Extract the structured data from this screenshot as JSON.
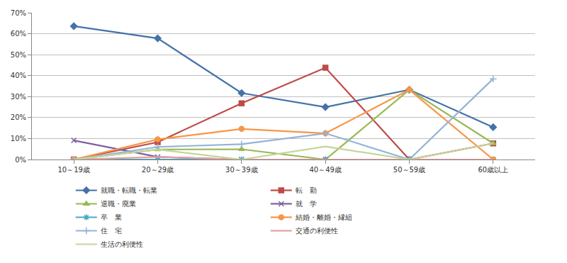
{
  "chart_data": {
    "type": "line",
    "categories": [
      "10～19歳",
      "20～29歳",
      "30～39歳",
      "40～49歳",
      "50～59歳",
      "60歳以上"
    ],
    "series": [
      {
        "name": "就職・転職・転業",
        "color": "#4472a8",
        "marker": "diamond",
        "values": [
          63.6,
          57.8,
          31.7,
          25.0,
          33.3,
          15.4
        ]
      },
      {
        "name": "転　勤",
        "color": "#be4b48",
        "marker": "square",
        "values": [
          0,
          8.3,
          26.8,
          43.8,
          0,
          7.7
        ]
      },
      {
        "name": "退職・廃業",
        "color": "#98b954",
        "marker": "triangle",
        "values": [
          0,
          4.8,
          4.9,
          0,
          33.3,
          7.7
        ]
      },
      {
        "name": "就　学",
        "color": "#7d60a0",
        "marker": "x",
        "values": [
          9.1,
          1.2,
          0,
          0,
          0,
          0
        ]
      },
      {
        "name": "卒　業",
        "color": "#46aac5",
        "marker": "asterisk",
        "values": [
          0,
          0,
          0,
          0,
          0,
          0
        ]
      },
      {
        "name": "結婚・離婚・縁組",
        "color": "#f79646",
        "marker": "circle",
        "values": [
          0,
          9.6,
          14.6,
          12.5,
          33.3,
          0
        ]
      },
      {
        "name": "住　宅",
        "color": "#95b3d7",
        "marker": "cross",
        "values": [
          0,
          6.0,
          7.3,
          12.5,
          0,
          38.5
        ]
      },
      {
        "name": "交通の利便性",
        "color": "#e6a0a0",
        "marker": "none",
        "values": [
          0,
          1.2,
          0,
          0,
          0,
          0
        ]
      },
      {
        "name": "生活の利便性",
        "color": "#c3d69b",
        "marker": "none",
        "values": [
          0,
          4.8,
          0,
          6.2,
          0,
          7.7
        ]
      }
    ],
    "ylim": [
      0,
      70
    ],
    "yticks": [
      {
        "value": 0,
        "label": "0%"
      },
      {
        "value": 10,
        "label": "10%"
      },
      {
        "value": 20,
        "label": "20%"
      },
      {
        "value": 30,
        "label": "30%"
      },
      {
        "value": 40,
        "label": "40%"
      },
      {
        "value": 50,
        "label": "50%"
      },
      {
        "value": 60,
        "label": "60%"
      },
      {
        "value": 70,
        "label": "70%"
      }
    ],
    "grid": true,
    "legend": "bottom"
  }
}
